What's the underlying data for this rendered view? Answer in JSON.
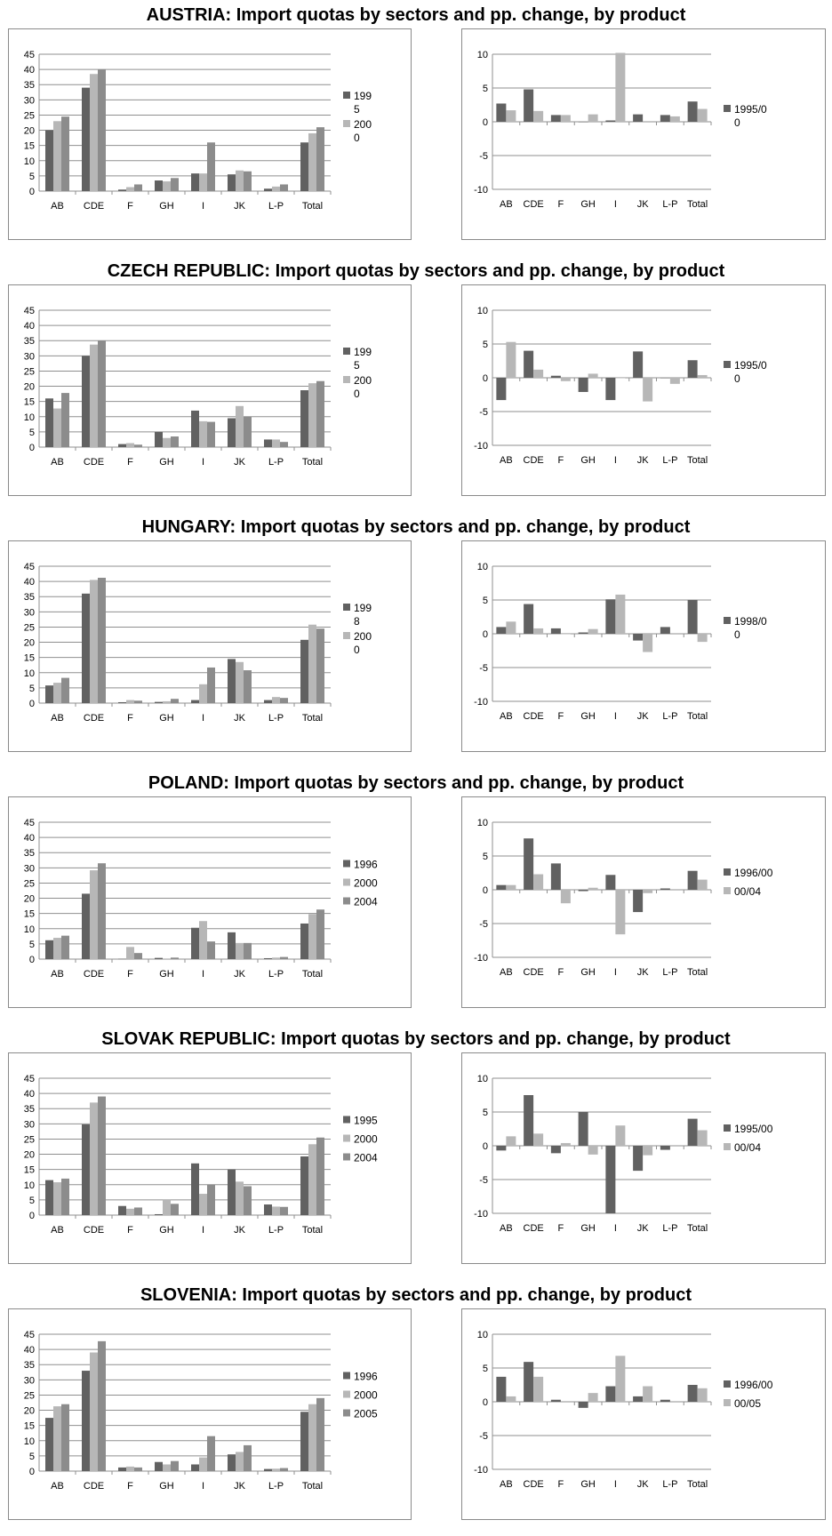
{
  "colors": {
    "s1": "#616161",
    "s2": "#b7b7b7",
    "s3": "#8c8c8c",
    "grid": "#8f8f8f",
    "axis": "#8f8f8f"
  },
  "sections": [
    {
      "title": "AUSTRIA: Import quotas by sectors and pp. change, by product",
      "left_legend_lines": [
        [
          "199",
          "5"
        ],
        [
          "200",
          "0"
        ]
      ],
      "left_legend_swatches": 2,
      "right_legend_lines": [
        [
          "1995/0",
          "0"
        ]
      ],
      "right_legend_swatches": 1
    },
    {
      "title": "CZECH REPUBLIC: Import quotas by sectors and pp. change, by product",
      "left_legend_lines": [
        [
          "199",
          "5"
        ],
        [
          "200",
          "0"
        ]
      ],
      "left_legend_swatches": 2,
      "right_legend_lines": [
        [
          "1995/0",
          "0"
        ]
      ],
      "right_legend_swatches": 1
    },
    {
      "title": "HUNGARY: Import quotas by sectors and pp. change, by product",
      "left_legend_lines": [
        [
          "199",
          "8"
        ],
        [
          "200",
          "0"
        ]
      ],
      "left_legend_swatches": 2,
      "right_legend_lines": [
        [
          "1998/0",
          "0"
        ]
      ],
      "right_legend_swatches": 1
    },
    {
      "title": "POLAND: Import quotas by sectors and pp. change, by product",
      "left_legend_lines": [
        [
          "1996"
        ],
        [
          "2000"
        ],
        [
          "2004"
        ]
      ],
      "left_legend_swatches": 3,
      "right_legend_lines": [
        [
          "1996/00"
        ],
        [
          "00/04"
        ]
      ],
      "right_legend_swatches": 2
    },
    {
      "title": "SLOVAK REPUBLIC: Import quotas by sectors and pp. change, by product",
      "left_legend_lines": [
        [
          "1995"
        ],
        [
          "2000"
        ],
        [
          "2004"
        ]
      ],
      "left_legend_swatches": 3,
      "right_legend_lines": [
        [
          "1995/00"
        ],
        [
          "00/04"
        ]
      ],
      "right_legend_swatches": 2
    },
    {
      "title": "SLOVENIA: Import quotas by sectors and pp. change, by product",
      "left_legend_lines": [
        [
          "1996"
        ],
        [
          "2000"
        ],
        [
          "2005"
        ]
      ],
      "left_legend_swatches": 3,
      "right_legend_lines": [
        [
          "1996/00"
        ],
        [
          "00/05"
        ]
      ],
      "right_legend_swatches": 2
    }
  ],
  "chart_data": [
    {
      "type": "bar",
      "country": "AUSTRIA",
      "chart": "Import quotas by sectors",
      "categories": [
        "AB",
        "CDE",
        "F",
        "GH",
        "I",
        "JK",
        "L-P",
        "Total"
      ],
      "ylim": [
        0,
        45
      ],
      "yticks": [
        0,
        5,
        10,
        15,
        20,
        25,
        30,
        35,
        40,
        45
      ],
      "grid": true,
      "legend": "right",
      "series": [
        {
          "values": [
            20,
            34,
            0.5,
            3.5,
            5.8,
            5.5,
            0.8,
            16
          ]
        },
        {
          "values": [
            23,
            38.5,
            1.3,
            3.2,
            5.8,
            6.8,
            1.5,
            19
          ]
        },
        {
          "values": [
            24.5,
            40,
            2.2,
            4.3,
            16,
            6.5,
            2.2,
            21
          ]
        }
      ]
    },
    {
      "type": "bar",
      "country": "AUSTRIA",
      "chart": "pp. change, by product",
      "categories": [
        "AB",
        "CDE",
        "F",
        "GH",
        "I",
        "JK",
        "L-P",
        "Total"
      ],
      "ylim": [
        -10,
        10
      ],
      "yticks": [
        -10,
        -5,
        0,
        5,
        10
      ],
      "grid": true,
      "legend": "right",
      "series": [
        {
          "name": "1995/00",
          "values": [
            2.7,
            4.8,
            1,
            0,
            0.2,
            1.1,
            1,
            3
          ]
        },
        {
          "values": [
            1.7,
            1.6,
            1,
            1.1,
            10.2,
            0.1,
            0.8,
            1.9
          ]
        }
      ]
    },
    {
      "type": "bar",
      "country": "CZECH REPUBLIC",
      "chart": "Import quotas by sectors",
      "categories": [
        "AB",
        "CDE",
        "F",
        "GH",
        "I",
        "JK",
        "L-P",
        "Total"
      ],
      "ylim": [
        0,
        45
      ],
      "yticks": [
        0,
        5,
        10,
        15,
        20,
        25,
        30,
        35,
        40,
        45
      ],
      "grid": true,
      "legend": "right",
      "series": [
        {
          "values": [
            16,
            30,
            1,
            5,
            12,
            9.5,
            2.5,
            18.7
          ]
        },
        {
          "values": [
            12.7,
            33.7,
            1.3,
            3,
            8.5,
            13.5,
            2.5,
            21
          ]
        },
        {
          "values": [
            17.8,
            35,
            0.8,
            3.5,
            8.3,
            10,
            1.7,
            21.7
          ]
        }
      ]
    },
    {
      "type": "bar",
      "country": "CZECH REPUBLIC",
      "chart": "pp. change, by product",
      "categories": [
        "AB",
        "CDE",
        "F",
        "GH",
        "I",
        "JK",
        "L-P",
        "Total"
      ],
      "ylim": [
        -10,
        10
      ],
      "yticks": [
        -10,
        -5,
        0,
        5,
        10
      ],
      "grid": true,
      "legend": "right",
      "series": [
        {
          "name": "1995/00",
          "values": [
            -3.3,
            4,
            0.3,
            -2.1,
            -3.3,
            3.9,
            0,
            2.6
          ]
        },
        {
          "values": [
            5.3,
            1.2,
            -0.5,
            0.6,
            0,
            -3.5,
            -0.9,
            0.4
          ]
        }
      ]
    },
    {
      "type": "bar",
      "country": "HUNGARY",
      "chart": "Import quotas by sectors",
      "categories": [
        "AB",
        "CDE",
        "F",
        "GH",
        "I",
        "JK",
        "L-P",
        "Total"
      ],
      "ylim": [
        0,
        45
      ],
      "yticks": [
        0,
        5,
        10,
        15,
        20,
        25,
        30,
        35,
        40,
        45
      ],
      "grid": true,
      "legend": "right",
      "series": [
        {
          "values": [
            5.8,
            36,
            0.3,
            0.4,
            1,
            14.5,
            1,
            20.8
          ]
        },
        {
          "values": [
            6.7,
            40.5,
            1,
            0.6,
            6.2,
            13.5,
            2,
            25.8
          ]
        },
        {
          "values": [
            8.3,
            41.2,
            0.8,
            1.4,
            11.7,
            10.8,
            1.7,
            24.5
          ]
        }
      ]
    },
    {
      "type": "bar",
      "country": "HUNGARY",
      "chart": "pp. change, by product",
      "categories": [
        "AB",
        "CDE",
        "F",
        "GH",
        "I",
        "JK",
        "L-P",
        "Total"
      ],
      "ylim": [
        -10,
        10
      ],
      "yticks": [
        -10,
        -5,
        0,
        5,
        10
      ],
      "grid": true,
      "legend": "right",
      "series": [
        {
          "name": "1998/00",
          "values": [
            1,
            4.4,
            0.8,
            0.2,
            5.1,
            -1,
            1,
            5
          ]
        },
        {
          "values": [
            1.8,
            0.8,
            0,
            0.7,
            5.8,
            -2.7,
            0.1,
            -1.2
          ]
        }
      ]
    },
    {
      "type": "bar",
      "country": "POLAND",
      "chart": "Import quotas by sectors",
      "categories": [
        "AB",
        "CDE",
        "F",
        "GH",
        "I",
        "JK",
        "L-P",
        "Total"
      ],
      "ylim": [
        0,
        45
      ],
      "yticks": [
        0,
        5,
        10,
        15,
        20,
        25,
        30,
        35,
        40,
        45
      ],
      "grid": true,
      "legend": "right",
      "series": [
        {
          "name": "1996",
          "values": [
            6.2,
            21.5,
            0.1,
            0.4,
            10.3,
            8.8,
            0.3,
            11.7
          ]
        },
        {
          "name": "2000",
          "values": [
            7,
            29.2,
            4,
            0.2,
            12.5,
            5.3,
            0.5,
            14.8
          ]
        },
        {
          "name": "2004",
          "values": [
            7.7,
            31.5,
            2,
            0.5,
            5.8,
            5.3,
            0.7,
            16.3
          ]
        }
      ]
    },
    {
      "type": "bar",
      "country": "POLAND",
      "chart": "pp. change, by product",
      "categories": [
        "AB",
        "CDE",
        "F",
        "GH",
        "I",
        "JK",
        "L-P",
        "Total"
      ],
      "ylim": [
        -10,
        10
      ],
      "yticks": [
        -10,
        -5,
        0,
        5,
        10
      ],
      "grid": true,
      "legend": "right",
      "series": [
        {
          "name": "1996/00",
          "values": [
            0.7,
            7.6,
            3.9,
            -0.2,
            2.2,
            -3.3,
            0.2,
            2.8
          ]
        },
        {
          "name": "00/04",
          "values": [
            0.7,
            2.3,
            -2,
            0.3,
            -6.6,
            -0.5,
            0.1,
            1.5
          ]
        }
      ]
    },
    {
      "type": "bar",
      "country": "SLOVAK REPUBLIC",
      "chart": "Import quotas by sectors",
      "categories": [
        "AB",
        "CDE",
        "F",
        "GH",
        "I",
        "JK",
        "L-P",
        "Total"
      ],
      "ylim": [
        0,
        45
      ],
      "yticks": [
        0,
        5,
        10,
        15,
        20,
        25,
        30,
        35,
        40,
        45
      ],
      "grid": true,
      "legend": "right",
      "series": [
        {
          "name": "1995",
          "values": [
            11.5,
            29.8,
            3,
            0.3,
            17,
            15,
            3.5,
            19.3
          ]
        },
        {
          "name": "2000",
          "values": [
            10.8,
            37,
            2.1,
            5,
            7,
            11,
            2.8,
            23.3
          ]
        },
        {
          "name": "2004",
          "values": [
            12,
            39,
            2.5,
            3.7,
            10,
            9.5,
            2.7,
            25.5
          ]
        }
      ]
    },
    {
      "type": "bar",
      "country": "SLOVAK REPUBLIC",
      "chart": "pp. change, by product",
      "categories": [
        "AB",
        "CDE",
        "F",
        "GH",
        "I",
        "JK",
        "L-P",
        "Total"
      ],
      "ylim": [
        -10,
        10
      ],
      "yticks": [
        -10,
        -5,
        0,
        5,
        10
      ],
      "grid": true,
      "legend": "right",
      "series": [
        {
          "name": "1995/00",
          "values": [
            -0.7,
            7.5,
            -1.1,
            5,
            -10,
            -3.7,
            -0.6,
            4
          ]
        },
        {
          "name": "00/04",
          "values": [
            1.4,
            1.8,
            0.4,
            -1.3,
            3,
            -1.4,
            -0.1,
            2.3
          ]
        }
      ]
    },
    {
      "type": "bar",
      "country": "SLOVENIA",
      "chart": "Import quotas by sectors",
      "categories": [
        "AB",
        "CDE",
        "F",
        "GH",
        "I",
        "JK",
        "L-P",
        "Total"
      ],
      "ylim": [
        0,
        45
      ],
      "yticks": [
        0,
        5,
        10,
        15,
        20,
        25,
        30,
        35,
        40,
        45
      ],
      "grid": true,
      "legend": "right",
      "series": [
        {
          "name": "1996",
          "values": [
            17.5,
            33,
            1.2,
            3,
            2.2,
            5.5,
            0.7,
            19.5
          ]
        },
        {
          "name": "2000",
          "values": [
            21.3,
            39,
            1.5,
            2.2,
            4.5,
            6.3,
            0.8,
            22
          ]
        },
        {
          "name": "2005",
          "values": [
            22,
            42.7,
            1.2,
            3.3,
            11.5,
            8.5,
            1,
            24
          ]
        }
      ]
    },
    {
      "type": "bar",
      "country": "SLOVENIA",
      "chart": "pp. change, by product",
      "categories": [
        "AB",
        "CDE",
        "F",
        "GH",
        "I",
        "JK",
        "L-P",
        "Total"
      ],
      "ylim": [
        -10,
        10
      ],
      "yticks": [
        -10,
        -5,
        0,
        5,
        10
      ],
      "grid": true,
      "legend": "right",
      "series": [
        {
          "name": "1996/00",
          "values": [
            3.7,
            5.9,
            0.3,
            -0.9,
            2.3,
            0.8,
            0.3,
            2.5
          ]
        },
        {
          "name": "00/05",
          "values": [
            0.8,
            3.7,
            -0.1,
            1.3,
            6.8,
            2.3,
            0.1,
            2
          ]
        }
      ]
    }
  ]
}
